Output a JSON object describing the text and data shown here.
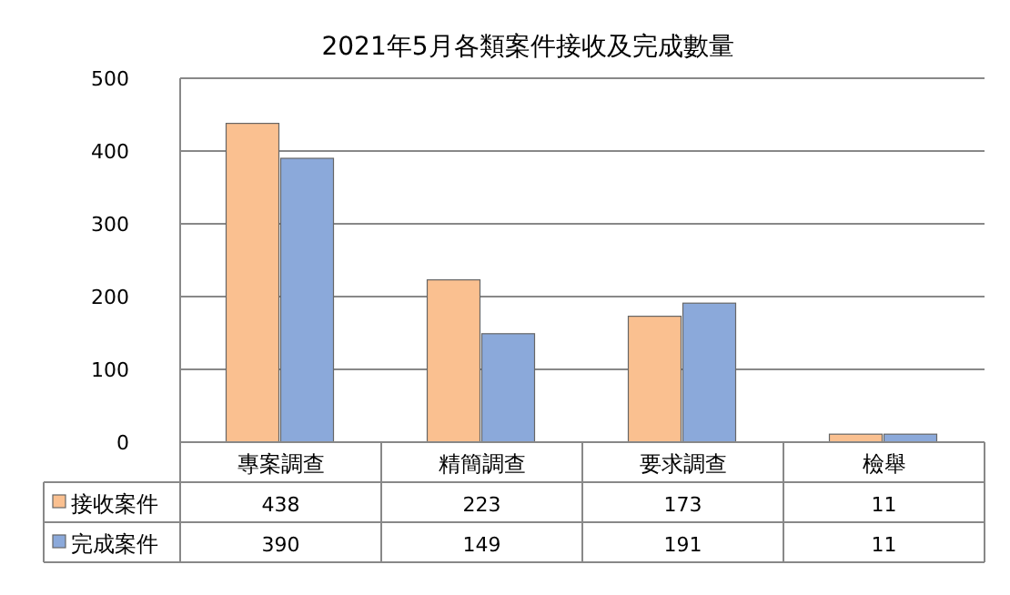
{
  "chart_data": {
    "type": "bar",
    "title": "2021年5月各類案件接收及完成數量",
    "categories": [
      "專案調查",
      "精簡調查",
      "要求調查",
      "檢舉"
    ],
    "series": [
      {
        "name": "接收案件",
        "color": "#fac090",
        "values": [
          438,
          223,
          173,
          11
        ]
      },
      {
        "name": "完成案件",
        "color": "#8ba9da",
        "values": [
          390,
          149,
          191,
          11
        ]
      }
    ],
    "ylim": [
      0,
      500
    ],
    "yticks": [
      0,
      100,
      200,
      300,
      400,
      500
    ],
    "grid": "y",
    "data_labels": true,
    "legend": "bottom left"
  }
}
